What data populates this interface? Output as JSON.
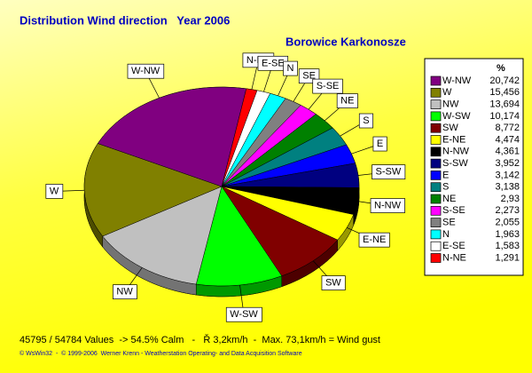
{
  "chart_data": {
    "type": "pie",
    "title": "Distribution Wind direction   Year 2006",
    "subtitle": "Borowice Karkonosze",
    "legend_header": "%",
    "categories": [
      "W-NW",
      "W",
      "NW",
      "W-SW",
      "SW",
      "E-NE",
      "N-NW",
      "S-SW",
      "E",
      "S",
      "NE",
      "S-SE",
      "SE",
      "N",
      "E-SE",
      "N-NE"
    ],
    "values": [
      20.742,
      15.456,
      13.694,
      10.174,
      8.772,
      4.474,
      4.361,
      3.952,
      3.142,
      3.138,
      2.93,
      2.273,
      2.055,
      1.963,
      1.583,
      1.291
    ],
    "value_labels": [
      "20,742",
      "15,456",
      "13,694",
      "10,174",
      "8,772",
      "4,474",
      "4,361",
      "3,952",
      "3,142",
      "3,138",
      "2,93",
      "2,273",
      "2,055",
      "1,963",
      "1,583",
      "1,291"
    ],
    "colors": [
      "#800080",
      "#808000",
      "#c0c0c0",
      "#00ff00",
      "#800000",
      "#ffff00",
      "#000000",
      "#000080",
      "#0000ff",
      "#008080",
      "#008000",
      "#ff00ff",
      "#808080",
      "#00ffff",
      "#ffffff",
      "#ff0000"
    ],
    "legend": "right",
    "footer": "45795 / 54784 Values  -> 54.5% Calm   -   Ř 3,2km/h  -  Max. 73,1km/h = Wind gust",
    "copyright": "© WsWin32  -  © 1999-2006  Werner Krenn - Weatherstation Operating- and Data Acquisition Software"
  }
}
